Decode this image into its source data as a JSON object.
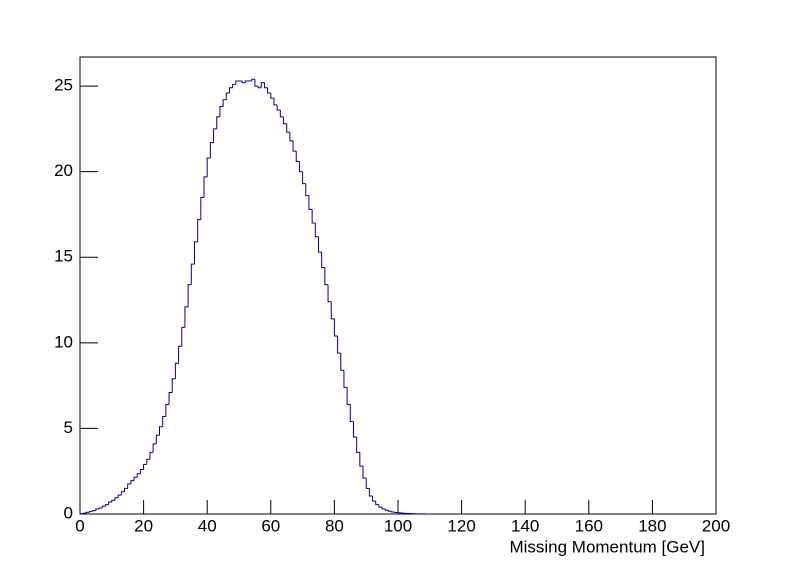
{
  "chart_data": {
    "type": "histogram",
    "x_label": "Missing Momentum [GeV]",
    "color": "#000099",
    "xlim": [
      0,
      200
    ],
    "ylim": [
      0,
      26.7
    ],
    "xticks": [
      0,
      20,
      40,
      60,
      80,
      100,
      120,
      140,
      160,
      180,
      200
    ],
    "yticks": [
      0,
      5,
      10,
      15,
      20,
      25
    ],
    "bins": [
      0,
      1,
      2,
      3,
      4,
      5,
      6,
      7,
      8,
      9,
      10,
      11,
      12,
      13,
      14,
      15,
      16,
      17,
      18,
      19,
      20,
      21,
      22,
      23,
      24,
      25,
      26,
      27,
      28,
      29,
      30,
      31,
      32,
      33,
      34,
      35,
      36,
      37,
      38,
      39,
      40,
      41,
      42,
      43,
      44,
      45,
      46,
      47,
      48,
      49,
      50,
      51,
      52,
      53,
      54,
      55,
      56,
      57,
      58,
      59,
      60,
      61,
      62,
      63,
      64,
      65,
      66,
      67,
      68,
      69,
      70,
      71,
      72,
      73,
      74,
      75,
      76,
      77,
      78,
      79,
      80,
      81,
      82,
      83,
      84,
      85,
      86,
      87,
      88,
      89,
      90,
      91,
      92,
      93,
      94,
      95,
      96,
      97,
      98,
      99,
      100,
      101,
      102,
      103,
      104,
      105,
      106,
      107,
      108,
      109,
      110
    ],
    "values": [
      0.02,
      0.05,
      0.1,
      0.15,
      0.2,
      0.3,
      0.35,
      0.45,
      0.55,
      0.7,
      0.8,
      0.95,
      1.1,
      1.3,
      1.5,
      1.75,
      1.95,
      2.15,
      2.35,
      2.6,
      2.9,
      3.2,
      3.6,
      4.1,
      4.6,
      5.1,
      5.7,
      6.4,
      7.1,
      7.9,
      8.8,
      9.8,
      10.9,
      12.1,
      13.4,
      14.6,
      15.9,
      17.2,
      18.5,
      19.7,
      20.8,
      21.7,
      22.5,
      23.2,
      23.8,
      24.2,
      24.6,
      24.9,
      25.1,
      25.3,
      25.3,
      25.2,
      25.3,
      25.3,
      25.4,
      25.0,
      24.9,
      25.2,
      24.9,
      24.6,
      24.3,
      23.9,
      23.6,
      23.2,
      22.8,
      22.3,
      21.8,
      21.2,
      20.6,
      20.0,
      19.3,
      18.6,
      17.8,
      17.0,
      16.2,
      15.3,
      14.4,
      13.4,
      12.4,
      11.4,
      10.4,
      9.4,
      8.4,
      7.4,
      6.4,
      5.4,
      4.5,
      3.6,
      2.8,
      2.1,
      1.5,
      1.05,
      0.75,
      0.55,
      0.4,
      0.3,
      0.22,
      0.16,
      0.12,
      0.09,
      0.07,
      0.05,
      0.04,
      0.03,
      0.02,
      0.015,
      0.01,
      0.008,
      0.005,
      0.003
    ]
  }
}
